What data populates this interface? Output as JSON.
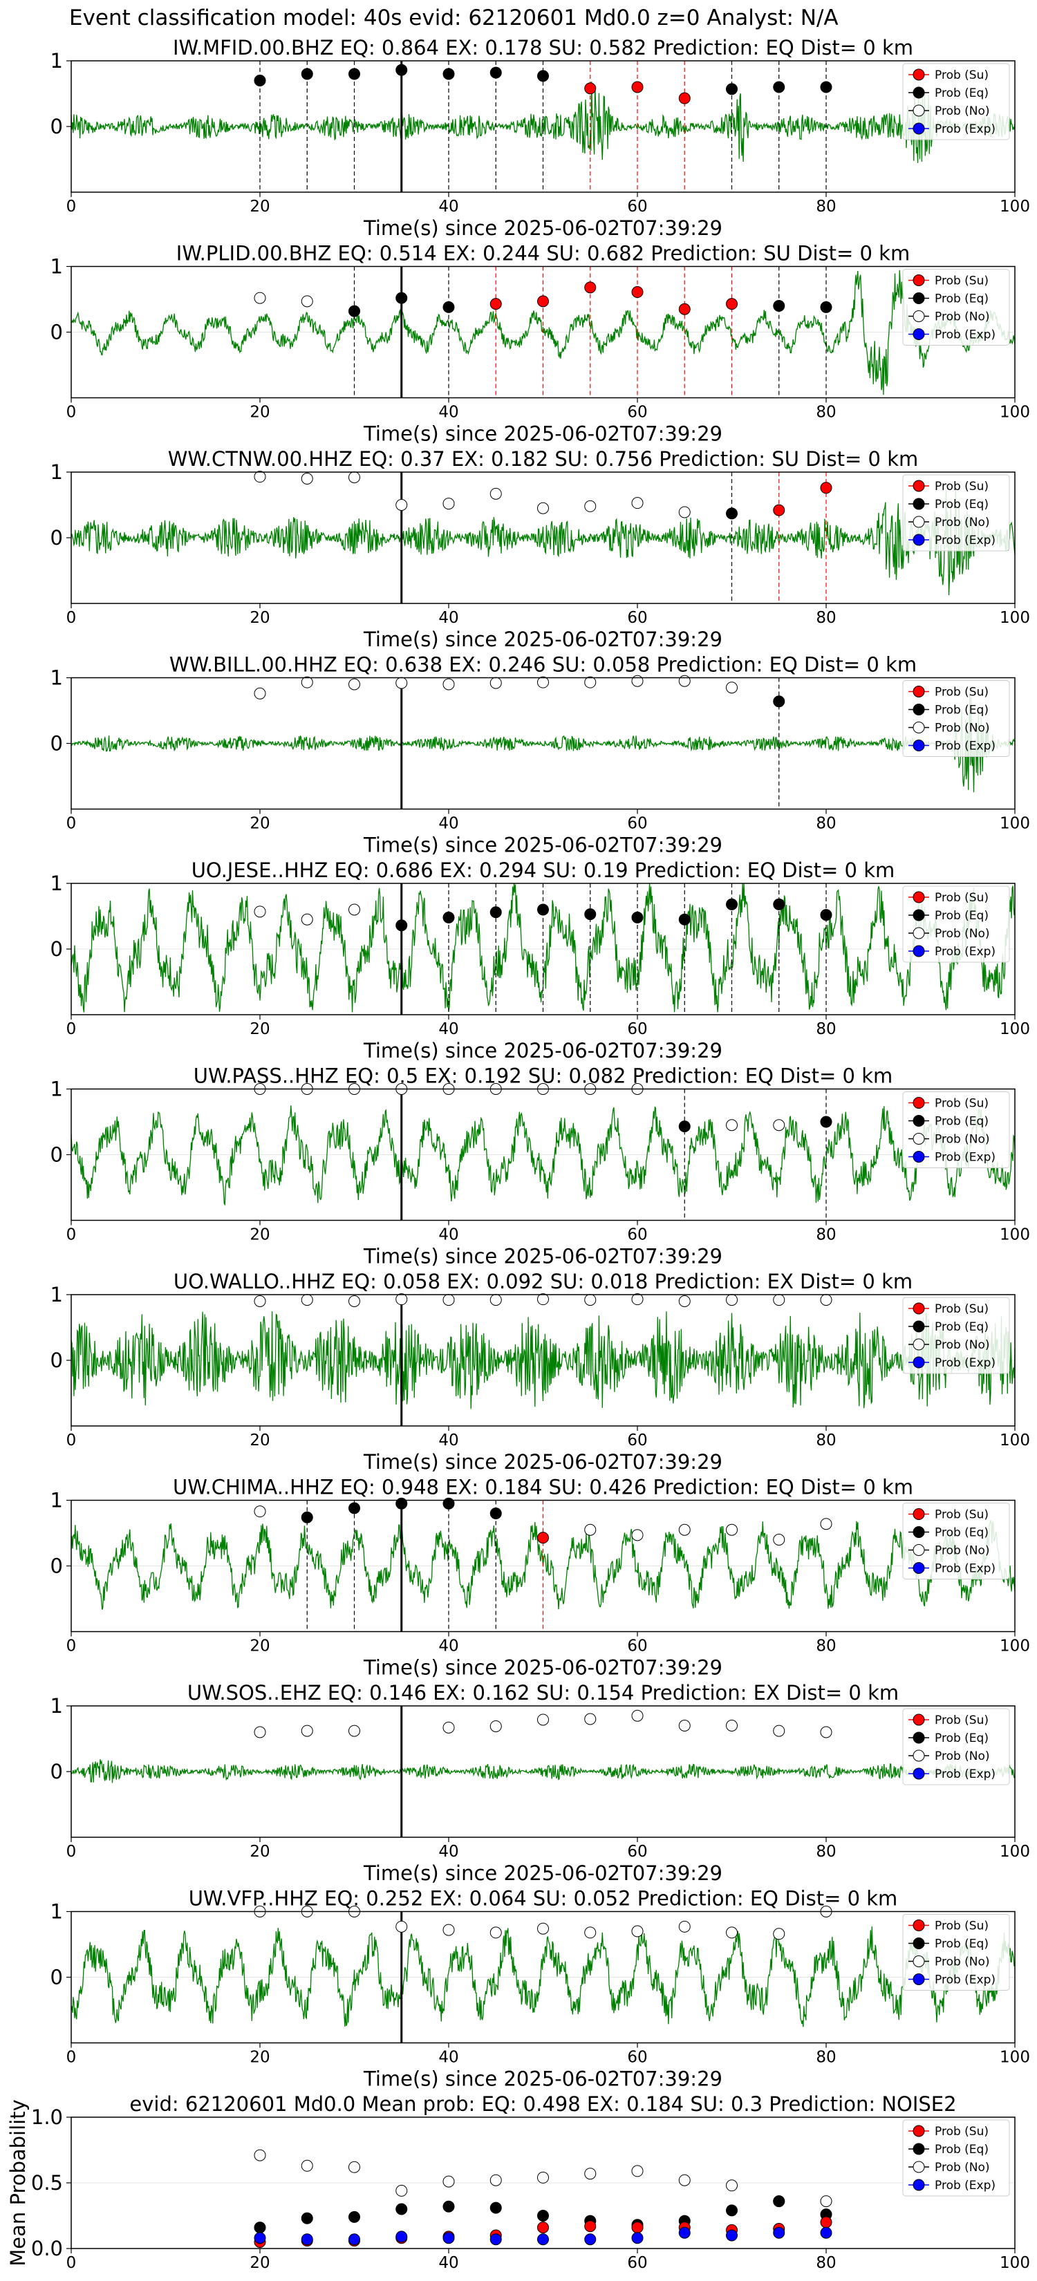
{
  "figure_title": "Event classification model: 40s evid: 62120601 Md0.0 z=0 Analyst: N/A",
  "xlabel": "Time(s) since 2025-06-02T07:39:29",
  "legend": [
    "Prob (Su)",
    "Prob (Eq)",
    "Prob (No)",
    "Prob (Exp)"
  ],
  "colors": {
    "su": "#ff0000",
    "eq": "#000000",
    "no": "#ffffff",
    "exp": "#0000ff",
    "trace": "#008000"
  },
  "chart_data": [
    {
      "type": "line",
      "title": "IW.MFID.00.BHZ   EQ: 0.864  EX: 0.178  SU: 0.582   Prediction: EQ    Dist= 0 km",
      "xlim": [
        0,
        100
      ],
      "ylim": [
        -1,
        1
      ],
      "xticks": [
        0,
        20,
        40,
        60,
        80,
        100
      ],
      "yticks": [
        0,
        1
      ],
      "pick": 35,
      "trace": {
        "amp": 0.2,
        "style": "noise",
        "bursts": [
          [
            50,
            58,
            0.9
          ],
          [
            70,
            72,
            0.7
          ],
          [
            85,
            92,
            1.0
          ],
          [
            20,
            22,
            0.25
          ]
        ]
      },
      "points": [
        [
          20,
          "eq",
          0.7
        ],
        [
          25,
          "eq",
          0.8
        ],
        [
          30,
          "eq",
          0.8
        ],
        [
          35,
          "eq",
          0.86
        ],
        [
          40,
          "eq",
          0.8
        ],
        [
          45,
          "eq",
          0.82
        ],
        [
          50,
          "eq",
          0.77
        ],
        [
          55,
          "su",
          0.58
        ],
        [
          60,
          "su",
          0.6
        ],
        [
          65,
          "su",
          0.43
        ],
        [
          70,
          "eq",
          0.57
        ],
        [
          75,
          "eq",
          0.6
        ],
        [
          80,
          "eq",
          0.6
        ]
      ]
    },
    {
      "type": "line",
      "title": "IW.PLID.00.BHZ   EQ: 0.514  EX: 0.244  SU: 0.682   Prediction: SU    Dist= 0 km",
      "xlim": [
        0,
        100
      ],
      "ylim": [
        -1,
        1
      ],
      "xticks": [
        0,
        20,
        40,
        60,
        80,
        100
      ],
      "yticks": [
        0,
        1
      ],
      "pick": 35,
      "trace": {
        "amp": 0.28,
        "style": "wave",
        "bursts": [
          [
            80,
            92,
            1.0
          ],
          [
            48,
            58,
            0.35
          ]
        ]
      },
      "points": [
        [
          20,
          "no",
          0.52
        ],
        [
          25,
          "no",
          0.47
        ],
        [
          30,
          "eq",
          0.32
        ],
        [
          35,
          "eq",
          0.52
        ],
        [
          40,
          "eq",
          0.38
        ],
        [
          45,
          "su",
          0.43
        ],
        [
          50,
          "su",
          0.47
        ],
        [
          55,
          "su",
          0.68
        ],
        [
          60,
          "su",
          0.61
        ],
        [
          65,
          "su",
          0.35
        ],
        [
          70,
          "su",
          0.43
        ],
        [
          75,
          "eq",
          0.4
        ],
        [
          80,
          "eq",
          0.38
        ]
      ]
    },
    {
      "type": "line",
      "title": "WW.CTNW.00.HHZ   EQ: 0.37  EX: 0.182  SU: 0.756   Prediction: SU    Dist= 0 km",
      "xlim": [
        0,
        100
      ],
      "ylim": [
        -1,
        1
      ],
      "xticks": [
        0,
        20,
        40,
        60,
        80,
        100
      ],
      "yticks": [
        0,
        1
      ],
      "pick": 35,
      "trace": {
        "amp": 0.32,
        "style": "noise",
        "bursts": [
          [
            83,
            100,
            1.0
          ]
        ]
      },
      "points": [
        [
          20,
          "no",
          0.93
        ],
        [
          25,
          "no",
          0.9
        ],
        [
          30,
          "no",
          0.92
        ],
        [
          35,
          "no",
          0.5
        ],
        [
          40,
          "no",
          0.52
        ],
        [
          45,
          "no",
          0.67
        ],
        [
          50,
          "no",
          0.45
        ],
        [
          55,
          "no",
          0.48
        ],
        [
          60,
          "no",
          0.53
        ],
        [
          65,
          "no",
          0.39
        ],
        [
          70,
          "eq",
          0.37
        ],
        [
          75,
          "su",
          0.42
        ],
        [
          80,
          "su",
          0.76
        ]
      ]
    },
    {
      "type": "line",
      "title": "WW.BILL.00.HHZ   EQ: 0.638  EX: 0.246  SU: 0.058   Prediction: EQ    Dist= 0 km",
      "xlim": [
        0,
        100
      ],
      "ylim": [
        -1,
        1
      ],
      "xticks": [
        0,
        20,
        40,
        60,
        80,
        100
      ],
      "yticks": [
        0,
        1
      ],
      "pick": 35,
      "trace": {
        "amp": 0.12,
        "style": "noise",
        "bursts": [
          [
            93,
            99,
            0.9
          ]
        ]
      },
      "points": [
        [
          20,
          "no",
          0.76
        ],
        [
          25,
          "no",
          0.93
        ],
        [
          30,
          "no",
          0.9
        ],
        [
          35,
          "no",
          0.92
        ],
        [
          40,
          "no",
          0.9
        ],
        [
          45,
          "no",
          0.92
        ],
        [
          50,
          "no",
          0.93
        ],
        [
          55,
          "no",
          0.93
        ],
        [
          60,
          "no",
          0.95
        ],
        [
          65,
          "no",
          0.95
        ],
        [
          70,
          "no",
          0.85
        ],
        [
          75,
          "eq",
          0.64
        ]
      ]
    },
    {
      "type": "line",
      "title": "UO.JESE..HHZ   EQ: 0.686  EX: 0.294  SU: 0.19   Prediction: EQ    Dist= 0 km",
      "xlim": [
        0,
        100
      ],
      "ylim": [
        -1,
        1
      ],
      "xticks": [
        0,
        20,
        40,
        60,
        80,
        100
      ],
      "yticks": [
        0,
        1
      ],
      "pick": 35,
      "trace": {
        "amp": 0.8,
        "style": "wave",
        "bursts": []
      },
      "points": [
        [
          20,
          "no",
          0.57
        ],
        [
          25,
          "no",
          0.45
        ],
        [
          30,
          "no",
          0.6
        ],
        [
          35,
          "eq",
          0.36
        ],
        [
          40,
          "eq",
          0.48
        ],
        [
          45,
          "eq",
          0.56
        ],
        [
          50,
          "eq",
          0.6
        ],
        [
          55,
          "eq",
          0.53
        ],
        [
          60,
          "eq",
          0.48
        ],
        [
          65,
          "eq",
          0.45
        ],
        [
          70,
          "eq",
          0.68
        ],
        [
          75,
          "eq",
          0.68
        ],
        [
          80,
          "eq",
          0.52
        ]
      ]
    },
    {
      "type": "line",
      "title": "UW.PASS..HHZ   EQ: 0.5  EX: 0.192  SU: 0.082   Prediction: EQ    Dist= 0 km",
      "xlim": [
        0,
        100
      ],
      "ylim": [
        -1,
        1
      ],
      "xticks": [
        0,
        20,
        40,
        60,
        80,
        100
      ],
      "yticks": [
        0,
        1
      ],
      "pick": 35,
      "trace": {
        "amp": 0.6,
        "style": "wave",
        "bursts": []
      },
      "points": [
        [
          20,
          "no",
          1.0
        ],
        [
          25,
          "no",
          1.0
        ],
        [
          30,
          "no",
          1.0
        ],
        [
          35,
          "no",
          1.0
        ],
        [
          40,
          "no",
          1.0
        ],
        [
          45,
          "no",
          1.0
        ],
        [
          50,
          "no",
          1.0
        ],
        [
          55,
          "no",
          1.0
        ],
        [
          60,
          "no",
          1.0
        ],
        [
          65,
          "eq",
          0.43
        ],
        [
          70,
          "no",
          0.45
        ],
        [
          75,
          "no",
          0.45
        ],
        [
          80,
          "eq",
          0.5
        ]
      ]
    },
    {
      "type": "line",
      "title": "UO.WALLO..HHZ   EQ: 0.058  EX: 0.092  SU: 0.018   Prediction: EX    Dist= 0 km",
      "xlim": [
        0,
        100
      ],
      "ylim": [
        -1,
        1
      ],
      "xticks": [
        0,
        20,
        40,
        60,
        80,
        100
      ],
      "yticks": [
        0,
        1
      ],
      "pick": 35,
      "trace": {
        "amp": 0.75,
        "style": "noise",
        "bursts": []
      },
      "points": [
        [
          20,
          "no",
          0.9
        ],
        [
          25,
          "no",
          0.92
        ],
        [
          30,
          "no",
          0.9
        ],
        [
          35,
          "no",
          0.93
        ],
        [
          40,
          "no",
          0.92
        ],
        [
          45,
          "no",
          0.92
        ],
        [
          50,
          "no",
          0.93
        ],
        [
          55,
          "no",
          0.92
        ],
        [
          60,
          "no",
          0.93
        ],
        [
          65,
          "no",
          0.9
        ],
        [
          70,
          "no",
          0.92
        ],
        [
          75,
          "no",
          0.92
        ],
        [
          80,
          "no",
          0.92
        ]
      ]
    },
    {
      "type": "line",
      "title": "UW.CHIMA..HHZ   EQ: 0.948  EX: 0.184  SU: 0.426   Prediction: EQ    Dist= 0 km",
      "xlim": [
        0,
        100
      ],
      "ylim": [
        -1,
        1
      ],
      "xticks": [
        0,
        20,
        40,
        60,
        80,
        100
      ],
      "yticks": [
        0,
        1
      ],
      "pick": 35,
      "trace": {
        "amp": 0.55,
        "style": "wave",
        "bursts": []
      },
      "points": [
        [
          20,
          "no",
          0.83
        ],
        [
          25,
          "eq",
          0.74
        ],
        [
          30,
          "eq",
          0.88
        ],
        [
          35,
          "eq",
          0.95
        ],
        [
          40,
          "eq",
          0.95
        ],
        [
          45,
          "eq",
          0.8
        ],
        [
          50,
          "su",
          0.43
        ],
        [
          55,
          "no",
          0.55
        ],
        [
          60,
          "no",
          0.47
        ],
        [
          65,
          "no",
          0.55
        ],
        [
          70,
          "no",
          0.55
        ],
        [
          75,
          "no",
          0.4
        ],
        [
          80,
          "no",
          0.64
        ]
      ]
    },
    {
      "type": "line",
      "title": "UW.SOS..EHZ   EQ: 0.146  EX: 0.162  SU: 0.154   Prediction: EX    Dist= 0 km",
      "xlim": [
        0,
        100
      ],
      "ylim": [
        -1,
        1
      ],
      "xticks": [
        0,
        20,
        40,
        60,
        80,
        100
      ],
      "yticks": [
        0,
        1
      ],
      "pick": 35,
      "trace": {
        "amp": 0.12,
        "style": "noise",
        "bursts": [
          [
            0,
            10,
            0.3
          ]
        ]
      },
      "points": [
        [
          20,
          "no",
          0.6
        ],
        [
          25,
          "no",
          0.62
        ],
        [
          30,
          "no",
          0.62
        ],
        [
          40,
          "no",
          0.67
        ],
        [
          45,
          "no",
          0.69
        ],
        [
          50,
          "no",
          0.79
        ],
        [
          55,
          "no",
          0.8
        ],
        [
          60,
          "no",
          0.85
        ],
        [
          65,
          "no",
          0.7
        ],
        [
          70,
          "no",
          0.7
        ],
        [
          75,
          "no",
          0.62
        ],
        [
          80,
          "no",
          0.6
        ]
      ]
    },
    {
      "type": "line",
      "title": "UW.VFP..HHZ   EQ: 0.252  EX: 0.064  SU: 0.052   Prediction: EQ    Dist= 0 km",
      "xlim": [
        0,
        100
      ],
      "ylim": [
        -1,
        1
      ],
      "xticks": [
        0,
        20,
        40,
        60,
        80,
        100
      ],
      "yticks": [
        0,
        1
      ],
      "pick": 35,
      "trace": {
        "amp": 0.6,
        "style": "wave",
        "bursts": []
      },
      "points": [
        [
          20,
          "no",
          1.0
        ],
        [
          25,
          "no",
          1.0
        ],
        [
          30,
          "no",
          1.0
        ],
        [
          35,
          "no",
          0.77
        ],
        [
          40,
          "no",
          0.72
        ],
        [
          45,
          "no",
          0.68
        ],
        [
          50,
          "no",
          0.74
        ],
        [
          55,
          "no",
          0.68
        ],
        [
          60,
          "no",
          0.7
        ],
        [
          65,
          "no",
          0.77
        ],
        [
          70,
          "no",
          0.68
        ],
        [
          75,
          "no",
          0.66
        ],
        [
          80,
          "no",
          1.0
        ]
      ]
    },
    {
      "type": "scatter",
      "title": "evid: 62120601   Md0.0    Mean prob:   EQ: 0.498  EX: 0.184  SU: 0.3   Prediction: NOISE2",
      "ylabel": "Mean Probability",
      "xlim": [
        0,
        100
      ],
      "ylim": [
        0,
        1
      ],
      "xticks": [
        0,
        20,
        40,
        60,
        80,
        100
      ],
      "yticks": [
        0.0,
        0.5,
        1.0
      ],
      "x": [
        20,
        25,
        30,
        35,
        40,
        45,
        50,
        55,
        60,
        65,
        70,
        75,
        80
      ],
      "series": [
        {
          "name": "Prob (No)",
          "values": [
            0.71,
            0.63,
            0.62,
            0.44,
            0.51,
            0.52,
            0.54,
            0.57,
            0.59,
            0.52,
            0.48,
            0.36,
            0.36
          ]
        },
        {
          "name": "Prob (Eq)",
          "values": [
            0.16,
            0.23,
            0.24,
            0.3,
            0.32,
            0.31,
            0.25,
            0.21,
            0.18,
            0.21,
            0.29,
            0.36,
            0.26
          ]
        },
        {
          "name": "Prob (Su)",
          "values": [
            0.05,
            0.06,
            0.06,
            0.08,
            0.09,
            0.1,
            0.16,
            0.17,
            0.16,
            0.16,
            0.14,
            0.15,
            0.2
          ]
        },
        {
          "name": "Prob (Exp)",
          "values": [
            0.08,
            0.07,
            0.07,
            0.09,
            0.08,
            0.07,
            0.07,
            0.07,
            0.08,
            0.12,
            0.1,
            0.12,
            0.12
          ]
        }
      ]
    }
  ]
}
